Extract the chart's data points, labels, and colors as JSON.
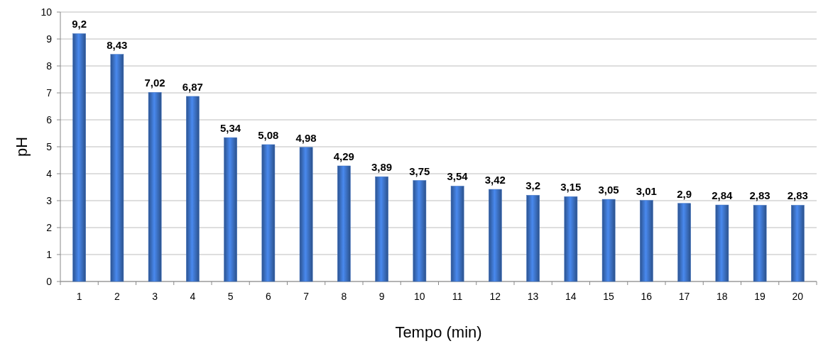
{
  "chart_data": {
    "type": "bar",
    "xlabel": "Tempo (min)",
    "ylabel": "pH",
    "categories": [
      "1",
      "2",
      "3",
      "4",
      "5",
      "6",
      "7",
      "8",
      "9",
      "10",
      "11",
      "12",
      "13",
      "14",
      "15",
      "16",
      "17",
      "18",
      "19",
      "20"
    ],
    "values": [
      9.2,
      8.43,
      7.02,
      6.87,
      5.34,
      5.08,
      4.98,
      4.29,
      3.89,
      3.75,
      3.54,
      3.42,
      3.2,
      3.15,
      3.05,
      3.01,
      2.9,
      2.84,
      2.83,
      2.83
    ],
    "value_labels": [
      "9,2",
      "8,43",
      "7,02",
      "6,87",
      "5,34",
      "5,08",
      "4,98",
      "4,29",
      "3,89",
      "3,75",
      "3,54",
      "3,42",
      "3,2",
      "3,15",
      "3,05",
      "3,01",
      "2,9",
      "2,84",
      "2,83",
      "2,83"
    ],
    "color": "#3b6fc0",
    "ylim": [
      0,
      10
    ],
    "yticks": [
      0,
      1,
      2,
      3,
      4,
      5,
      6,
      7,
      8,
      9,
      10
    ],
    "grid": "y"
  }
}
